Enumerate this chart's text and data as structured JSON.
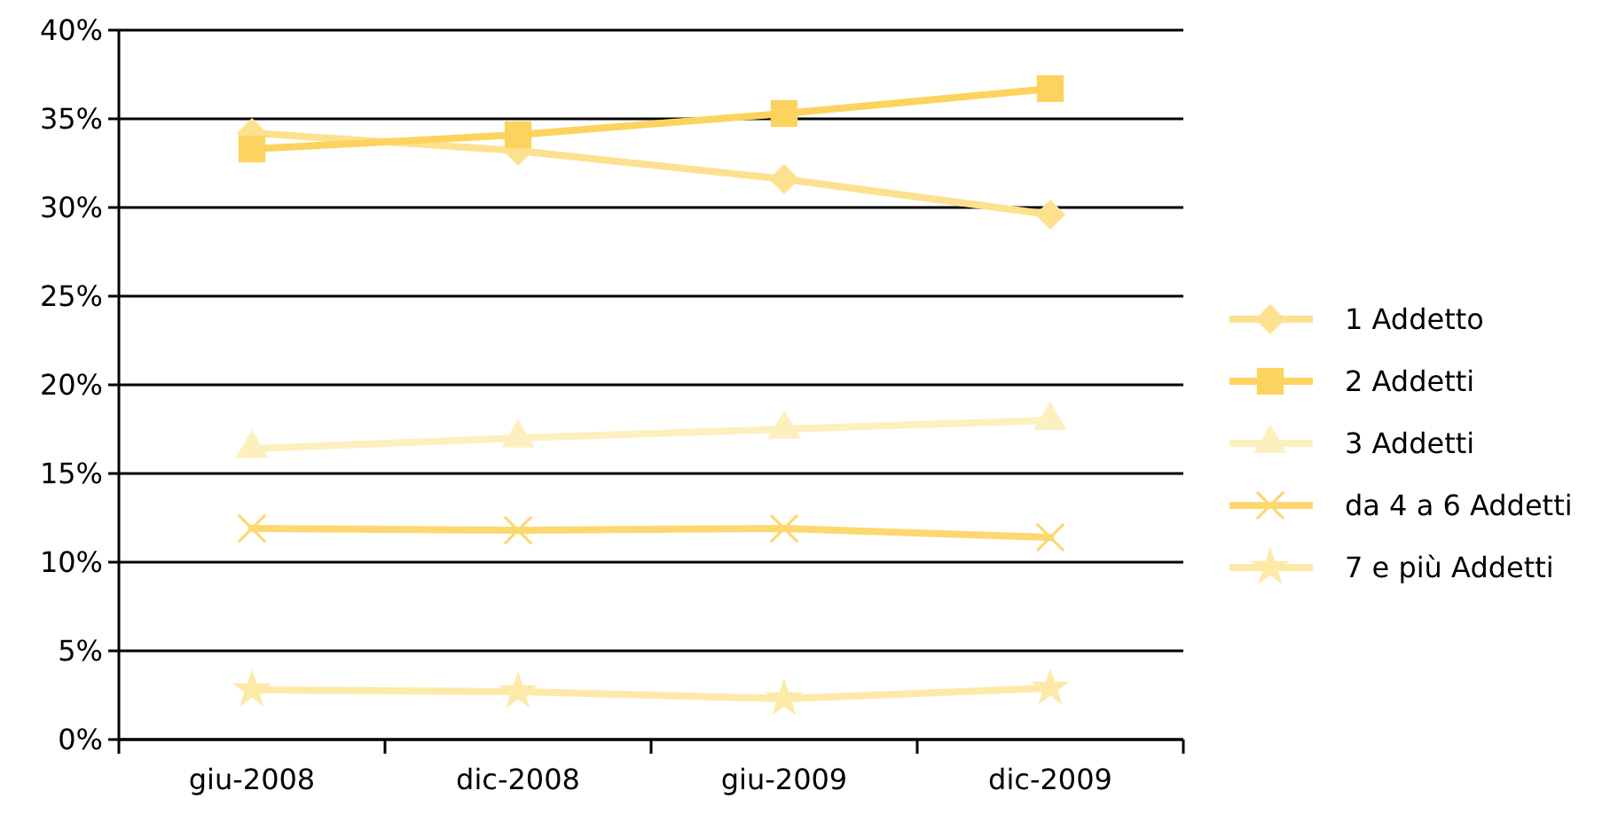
{
  "chart_data": {
    "type": "line",
    "categories": [
      "giu-2008",
      "dic-2008",
      "giu-2009",
      "dic-2009"
    ],
    "series": [
      {
        "name": "1 Addetto",
        "color": "#fde18f",
        "marker": "diamond",
        "values": [
          34.2,
          33.2,
          31.6,
          29.6
        ]
      },
      {
        "name": "2 Addetti",
        "color": "#fdd35f",
        "marker": "square",
        "values": [
          33.3,
          34.1,
          35.3,
          36.7
        ]
      },
      {
        "name": "3 Addetti",
        "color": "#fdf0bf",
        "marker": "triangle",
        "values": [
          16.4,
          17.0,
          17.5,
          18.0
        ]
      },
      {
        "name": "da 4 a 6 Addetti",
        "color": "#fdd870",
        "marker": "cross",
        "values": [
          11.9,
          11.8,
          11.9,
          11.4
        ]
      },
      {
        "name": "7 e più Addetti",
        "color": "#fde9a8",
        "marker": "star",
        "values": [
          2.8,
          2.7,
          2.3,
          2.9
        ]
      }
    ],
    "ylim": [
      0,
      40
    ],
    "yticks": [
      {
        "value": 0,
        "label": "0%"
      },
      {
        "value": 5,
        "label": "5%"
      },
      {
        "value": 10,
        "label": "10%"
      },
      {
        "value": 15,
        "label": "15%"
      },
      {
        "value": 20,
        "label": "20%"
      },
      {
        "value": 25,
        "label": "25%"
      },
      {
        "value": 30,
        "label": "30%"
      },
      {
        "value": 35,
        "label": "35%"
      },
      {
        "value": 40,
        "label": "40%"
      }
    ],
    "grid": "y",
    "legend": "right",
    "line_style": "solid"
  }
}
